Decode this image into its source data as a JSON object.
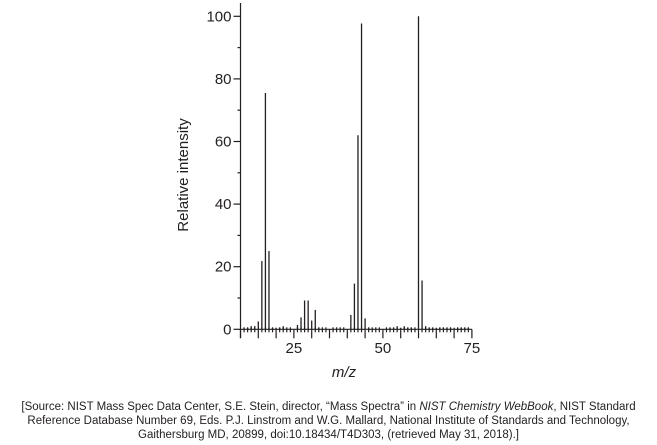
{
  "chart_data": {
    "type": "bar",
    "title": "",
    "xlabel": "m/z",
    "ylabel": "Relative intensity",
    "xlim": [
      10,
      75
    ],
    "ylim": [
      0,
      100
    ],
    "x_ticks": [
      25,
      50,
      75
    ],
    "y_ticks": [
      0,
      20,
      40,
      60,
      80,
      100
    ],
    "grid": false,
    "x": [
      11,
      12,
      13,
      14,
      15,
      16,
      17,
      18,
      19,
      20,
      21,
      22,
      26,
      27,
      28,
      29,
      30,
      31,
      32,
      41,
      42,
      43,
      44,
      45,
      46,
      52,
      53,
      54,
      55,
      56,
      57,
      58,
      60,
      61,
      62,
      63,
      64,
      65,
      66,
      67,
      68,
      69,
      70,
      71,
      72,
      73,
      74
    ],
    "values": [
      0.3,
      0.5,
      1,
      1,
      2.5,
      21.8,
      75.5,
      25,
      0.5,
      0.5,
      0.5,
      1,
      1.4,
      3.8,
      9.2,
      9.2,
      2.8,
      6.2,
      0.5,
      4.6,
      14.6,
      62,
      97.7,
      3.5,
      0.5,
      0.5,
      0.5,
      1,
      0.5,
      1,
      0.5,
      0.5,
      100,
      15.6,
      1,
      0.5,
      0.5,
      0.5,
      0.5,
      0.5,
      0.5,
      0.5,
      0.5,
      0.5,
      0.5,
      0.5,
      0.5
    ]
  },
  "source": {
    "line1_a": "[Source: NIST Mass Spec Data Center, S.E. Stein, director, “Mass Spectra” in ",
    "line1_i": "NIST Chemistry WebBook",
    "line1_b": ", NIST Standard",
    "line2": "Reference Database Number 69, Eds. P.J. Linstrom and W.G. Mallard, National Institute of Standards and Technology,",
    "line3": "Gaithersburg MD, 20899, doi:10.18434/T4D303, (retrieved May 31, 2018).]"
  }
}
